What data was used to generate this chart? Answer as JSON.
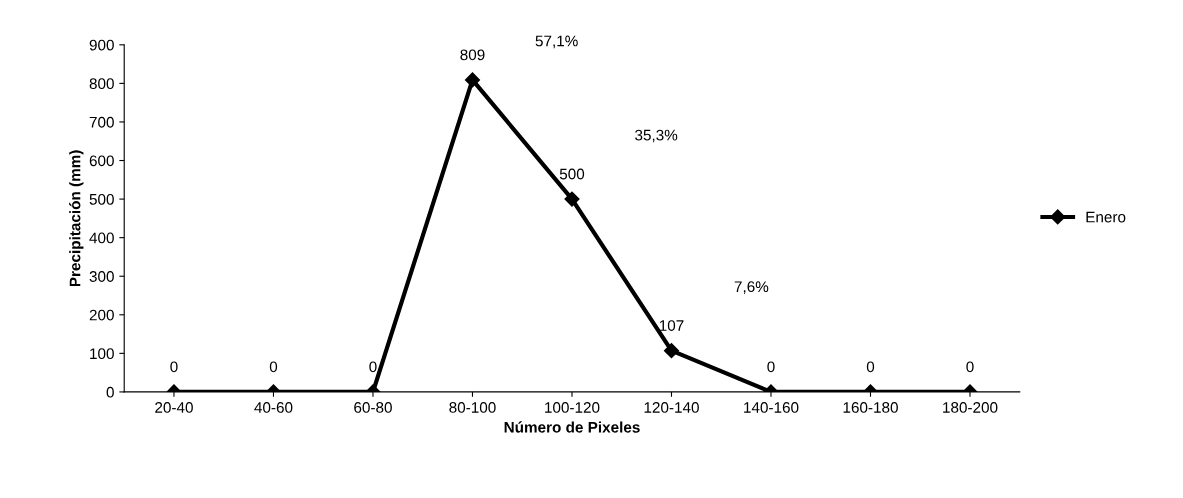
{
  "chart_data": {
    "type": "line",
    "xlabel": "Número de Pixeles",
    "ylabel": "Precipitación (mm)",
    "categories": [
      "20-40",
      "40-60",
      "60-80",
      "80-100",
      "100-120",
      "120-140",
      "140-160",
      "160-180",
      "180-200"
    ],
    "series": [
      {
        "name": "Enero",
        "color": "#000000",
        "values": [
          0,
          0,
          0,
          809,
          500,
          107,
          0,
          0,
          0
        ]
      }
    ],
    "ylim": [
      0,
      900
    ],
    "yticks": [
      0,
      100,
      200,
      300,
      400,
      500,
      600,
      700,
      800,
      900
    ],
    "data_labels": true,
    "grid": false,
    "legend": "right",
    "marker": "diamond",
    "line_style": "solid",
    "annotations": [
      "57,1%",
      "35,3%",
      "7,6%"
    ]
  }
}
